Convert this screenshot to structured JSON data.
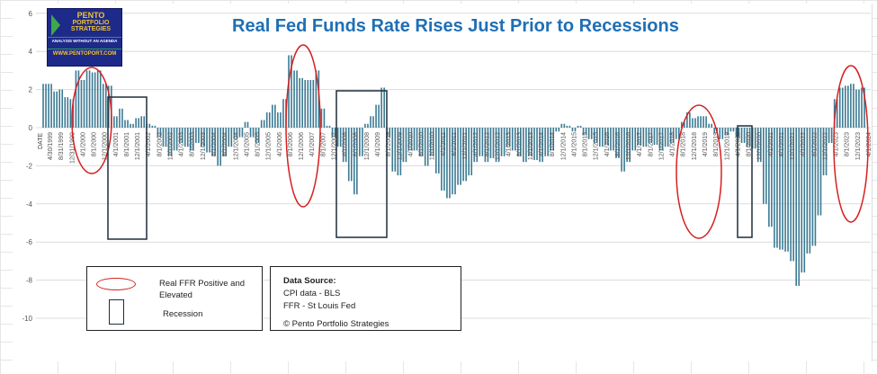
{
  "chart_data": {
    "type": "bar",
    "title": "Real Fed Funds Rate Rises Just Prior to Recessions",
    "xlabel": "DATE",
    "ylabel": "",
    "ylim": [
      -10,
      6
    ],
    "yticks": [
      6,
      4,
      2,
      0,
      -2,
      -4,
      -6,
      -8,
      -10
    ],
    "grid": true,
    "bar_color": "#3b7a93",
    "x_start": "1999-04",
    "x_step_months": 2,
    "values": [
      2.3,
      2.3,
      1.9,
      2.0,
      1.6,
      1.5,
      3.0,
      2.5,
      3.0,
      2.9,
      3.0,
      2.3,
      2.2,
      0.6,
      1.0,
      0.4,
      0.2,
      0.5,
      0.6,
      0.2,
      0.1,
      -0.5,
      -1.0,
      -1.5,
      -1.2,
      -0.8,
      -1.0,
      -1.2,
      -0.8,
      -1.0,
      -1.3,
      -1.5,
      -2.0,
      -1.5,
      -1.0,
      -0.6,
      -0.5,
      0.3,
      -0.5,
      -0.8,
      0.4,
      0.8,
      1.2,
      0.8,
      1.5,
      3.8,
      3.0,
      2.6,
      2.5,
      2.5,
      3.0,
      1.0,
      0.1,
      -0.5,
      -1.0,
      -1.8,
      -2.8,
      -3.5,
      -1.5,
      0.2,
      0.6,
      1.2,
      2.1,
      -0.5,
      -2.3,
      -2.5,
      -1.8,
      -1.2,
      -1.2,
      -1.5,
      -2.0,
      -1.5,
      -2.4,
      -3.3,
      -3.7,
      -3.5,
      -3.0,
      -2.8,
      -2.5,
      -1.8,
      -1.5,
      -1.8,
      -1.6,
      -1.8,
      -1.5,
      -1.0,
      -1.2,
      -1.5,
      -1.8,
      -1.5,
      -1.7,
      -1.8,
      -1.5,
      -1.2,
      -0.2,
      0.2,
      0.1,
      -0.2,
      0.1,
      -0.4,
      -0.6,
      -0.8,
      -1.0,
      -0.9,
      -1.2,
      -1.6,
      -2.3,
      -1.8,
      -1.2,
      -0.9,
      -1.0,
      -0.8,
      -0.9,
      -1.2,
      -1.0,
      -0.8,
      -0.6,
      0.3,
      0.8,
      0.5,
      0.6,
      0.6,
      0.2,
      -0.3,
      -0.6,
      -0.4,
      -0.2,
      -0.5,
      -0.8,
      -1.0,
      -1.1,
      -1.8,
      -4.0,
      -5.2,
      -6.3,
      -6.4,
      -6.5,
      -7.0,
      -8.3,
      -7.6,
      -6.6,
      -6.2,
      -4.6,
      -2.5,
      -0.8,
      1.5,
      2.1,
      2.2,
      2.3,
      2.0,
      2.1
    ],
    "tick_labels": [
      "4/30/1999",
      "8/31/1999",
      "12/31/1999",
      "4/1/2000",
      "8/1/2000",
      "12/1/2000",
      "4/1/2001",
      "8/1/2001",
      "12/1/2001",
      "4/1/2002",
      "8/1/2002",
      "12/1/2002",
      "4/1/2003",
      "8/1/2003",
      "12/1/2003",
      "4/1/2004",
      "8/1/2004",
      "12/1/2004",
      "4/1/2005",
      "8/1/2005",
      "12/1/2005",
      "4/1/2006",
      "8/1/2006",
      "12/1/2006",
      "4/1/2007",
      "8/1/2007",
      "12/1/2007",
      "4/1/2008",
      "8/1/2008",
      "12/1/2008",
      "4/1/2009",
      "8/1/2009",
      "12/1/2009",
      "4/1/2010",
      "8/1/2010",
      "12/1/2010",
      "4/1/2011",
      "8/1/2011",
      "12/1/2011",
      "4/1/2012",
      "8/1/2012",
      "12/1/2012",
      "4/1/2013",
      "8/1/2013",
      "12/1/2013",
      "4/1/2014",
      "8/1/2014",
      "12/1/2014",
      "4/1/2015",
      "8/1/2015",
      "12/1/2015",
      "4/1/2016",
      "8/1/2016",
      "12/1/2016",
      "4/1/2017",
      "8/1/2017",
      "12/1/2017",
      "4/1/2018",
      "8/1/2018",
      "12/1/2018",
      "4/1/2019",
      "8/1/2019",
      "12/1/2019",
      "4/1/2020",
      "8/1/2020",
      "12/1/2020",
      "4/1/2021",
      "8/1/2021",
      "12/1/2021",
      "4/1/2022",
      "8/1/2022",
      "12/1/2022",
      "4/1/2023",
      "8/1/2023",
      "12/1/2023",
      "4/1/2024"
    ],
    "annotations": {
      "elevated_periods": [
        "2000",
        "2006-2007",
        "2018-2019",
        "2023-2024"
      ],
      "recessions": [
        "2001",
        "2008-2009",
        "2020"
      ],
      "elevated_color": "#d62020",
      "recession_color": "#1e2e3a"
    }
  },
  "logo": {
    "line1": "PENTO",
    "line2": "PORTFOLIO",
    "line3": "STRATEGIES",
    "tagline": "ANALYSIS WITHOUT AN AGENDA",
    "url": "WWW.PENTOPORT.COM"
  },
  "legend": {
    "elevated_label": "Real FFR Positive and Elevated",
    "recession_label": "Recession"
  },
  "source": {
    "heading": "Data Source:",
    "line1": "CPI data - BLS",
    "line2": "FFR - St Louis Fed",
    "copyright": "© Pento Portfolio Strategies"
  }
}
